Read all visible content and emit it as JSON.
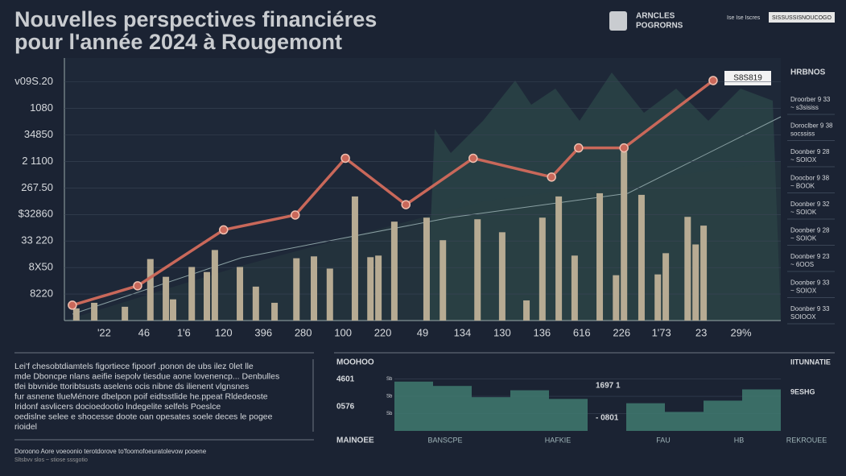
{
  "header": {
    "title_lines": [
      "Nouvelles perspectives financiéres",
      "pour l'année 2024 à Rougemont"
    ],
    "logo_lines": [
      "ARNCLES",
      "POGRORNS"
    ],
    "top_note": "Ise Ise Iscres",
    "button": "SISSUSSISNOUCOGO"
  },
  "chart_data": {
    "type": "bar-line",
    "categories": [
      "'22",
      "46",
      "1'6",
      "120",
      "396",
      "280",
      "100",
      "220",
      "49",
      "134",
      "130",
      "136",
      "616",
      "226",
      "1'73",
      "23",
      "29%"
    ],
    "xlim": [
      -1,
      17
    ],
    "ylim": [
      0,
      9.9
    ],
    "yticks": [
      {
        "value": 1,
        "label": "8220"
      },
      {
        "value": 2,
        "label": "8X50"
      },
      {
        "value": 3,
        "label": "33 220"
      },
      {
        "value": 4,
        "label": "$32860"
      },
      {
        "value": 5,
        "label": "267.50"
      },
      {
        "value": 6,
        "label": "2 1100"
      },
      {
        "value": 7,
        "label": "34850"
      },
      {
        "value": 8,
        "label": "1080"
      },
      {
        "value": 9,
        "label": "v09S.20"
      }
    ],
    "grid": true,
    "series": [
      {
        "kind": "bar",
        "color": "#b7ab93",
        "x": [
          -0.7,
          -0.25,
          0.52,
          1.16,
          1.55,
          1.73,
          2.2,
          2.58,
          2.78,
          3.41,
          3.81,
          4.28,
          4.83,
          5.27,
          5.67,
          6.3,
          6.69,
          6.89,
          7.29,
          8.1,
          8.51,
          9.38,
          10.0,
          10.61,
          11.01,
          11.42,
          11.82,
          12.45,
          12.86,
          13.06,
          13.5,
          13.91,
          14.11,
          14.66,
          14.86,
          15.06
        ],
        "values": [
          0.46,
          0.67,
          0.52,
          2.32,
          1.65,
          0.8,
          2.02,
          1.83,
          2.66,
          2.02,
          1.28,
          0.67,
          2.35,
          2.42,
          1.96,
          4.68,
          2.39,
          2.45,
          3.73,
          3.88,
          3.03,
          3.82,
          3.33,
          0.76,
          3.88,
          4.68,
          2.45,
          4.8,
          1.71,
          6.36,
          4.74,
          1.74,
          2.54,
          3.91,
          2.87,
          3.58
        ]
      },
      {
        "kind": "line",
        "color": "#c9685a",
        "x": [
          -0.8,
          0.84,
          3.0,
          4.8,
          6.06,
          7.58,
          9.27,
          11.24,
          11.92,
          13.06,
          15.3
        ],
        "values": [
          0.58,
          1.31,
          3.42,
          3.98,
          6.12,
          4.37,
          6.12,
          5.41,
          6.51,
          6.51,
          9.05
        ]
      }
    ],
    "callout": "S8S819"
  },
  "side_panel": {
    "title": "HRBNOS",
    "items": [
      [
        "Droorber 9 33",
        "~ s3sisiss"
      ],
      [
        "Doroclber 9 38",
        "socssiss"
      ],
      [
        "Doonber 9 28",
        "~ SOIOX"
      ],
      [
        "Doocbor 9 38",
        "~ BOOK"
      ],
      [
        "Doonber 9 32",
        "~ SOIOK"
      ],
      [
        "Doonber 9 28",
        "~ SOIOK"
      ],
      [
        "Doonber 9 23",
        "~ 6OOS"
      ],
      [
        "Doonber 9 33",
        "~ SOIOX"
      ],
      [
        "Doonber 9 33",
        "SOIOOX"
      ]
    ]
  },
  "text_block": {
    "lines": [
      "Lei'f chesobtdiamtels figortiece fipoorf .ponon de ubs ilez 0let lle",
      "mde Dboncpe nlans aeifie isepolv tiesdue aone lovenencp... Denbulles",
      "tfei bbvnide ttoribtsusts aselens ocis nibne ds ilienent vlgnsnes",
      "fur asnene tlueMénore dbelpon poif eidtsstlide he.ppeat Rldedeoste",
      "Iridonf asvlicers docioedootio lndegelite selfels Poeslce",
      "oedislne selee e shocesse doote oan opesates soele deces le pogee",
      "rioidel"
    ],
    "footnote": [
      "Doroono Aore voeoonio terotdorove to'foomofoeuratolevow pooene",
      "Sltsbvv slos ~ stiose sssgotio"
    ]
  },
  "bottom_panel": {
    "left_labels": [
      "MOOHOO",
      "4601",
      "0576",
      "MAINOEE"
    ],
    "mid_labels": [
      "1697 1",
      "- 0801"
    ],
    "right_labels": [
      "IITUNNATIE",
      "9ESHG"
    ],
    "labels": [
      "BANSCPE",
      "HAFKIE",
      "FAU",
      "HB",
      "REKROUEE"
    ],
    "chart_data": {
      "type": "bar",
      "color": "#3f7a70",
      "values": [
        2.85,
        2.6,
        1.95,
        2.35,
        1.85,
        null,
        1.6,
        1.1,
        1.75,
        2.4
      ],
      "ylim": [
        0,
        3.4
      ],
      "yticks": [
        {
          "value": 3,
          "label": "Sb"
        },
        {
          "value": 2,
          "label": "Sb"
        },
        {
          "value": 1,
          "label": "Sb"
        }
      ]
    }
  }
}
